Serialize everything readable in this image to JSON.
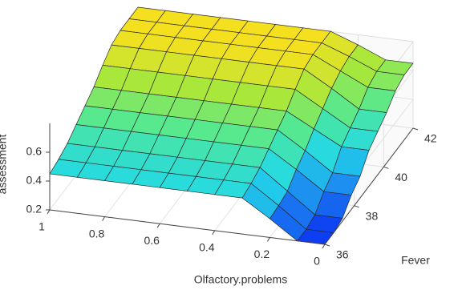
{
  "chart_data": {
    "type": "surface",
    "xlabel": "Olfactory.problems",
    "ylabel": "Fever",
    "zlabel": "assessment",
    "x": [
      0,
      0.1,
      0.2,
      0.3,
      0.4,
      0.5,
      0.6,
      0.7,
      0.8,
      0.9,
      1
    ],
    "y": [
      36,
      36.6,
      37.2,
      37.8,
      38.4,
      39,
      39.6,
      40.2,
      40.8,
      41.4,
      42
    ],
    "z": [
      [
        0.2,
        0.2,
        0.33,
        0.45,
        0.45,
        0.45,
        0.45,
        0.45,
        0.45,
        0.45,
        0.45
      ],
      [
        0.2,
        0.2,
        0.34,
        0.47,
        0.47,
        0.47,
        0.47,
        0.47,
        0.47,
        0.47,
        0.47
      ],
      [
        0.22,
        0.22,
        0.36,
        0.5,
        0.5,
        0.5,
        0.5,
        0.5,
        0.5,
        0.5,
        0.5
      ],
      [
        0.3,
        0.3,
        0.43,
        0.55,
        0.55,
        0.55,
        0.55,
        0.55,
        0.55,
        0.55,
        0.55
      ],
      [
        0.35,
        0.35,
        0.48,
        0.6,
        0.6,
        0.6,
        0.6,
        0.6,
        0.6,
        0.6,
        0.6
      ],
      [
        0.45,
        0.45,
        0.55,
        0.65,
        0.65,
        0.65,
        0.65,
        0.65,
        0.65,
        0.65,
        0.65
      ],
      [
        0.5,
        0.5,
        0.61,
        0.72,
        0.72,
        0.72,
        0.72,
        0.72,
        0.72,
        0.72,
        0.72
      ],
      [
        0.55,
        0.55,
        0.67,
        0.78,
        0.78,
        0.78,
        0.78,
        0.78,
        0.78,
        0.78,
        0.78
      ],
      [
        0.62,
        0.62,
        0.71,
        0.8,
        0.8,
        0.8,
        0.8,
        0.8,
        0.8,
        0.8,
        0.8
      ],
      [
        0.65,
        0.65,
        0.73,
        0.8,
        0.8,
        0.8,
        0.8,
        0.8,
        0.8,
        0.8,
        0.8
      ],
      [
        0.65,
        0.65,
        0.73,
        0.8,
        0.8,
        0.8,
        0.8,
        0.8,
        0.8,
        0.8,
        0.8
      ]
    ],
    "xlim": [
      0,
      1
    ],
    "ylim": [
      36,
      42
    ],
    "zlim": [
      0.2,
      0.8
    ],
    "xticks": [
      0,
      0.2,
      0.4,
      0.6,
      0.8,
      1
    ],
    "yticks": [
      36,
      38,
      40,
      42
    ],
    "zticks": [
      0.2,
      0.4,
      0.6
    ],
    "xdir": "reverse",
    "grid": true,
    "colormap": [
      "#0d3ef2",
      "#1d8cf0",
      "#22d8e8",
      "#4de89a",
      "#a6e83c",
      "#f5e020"
    ]
  }
}
